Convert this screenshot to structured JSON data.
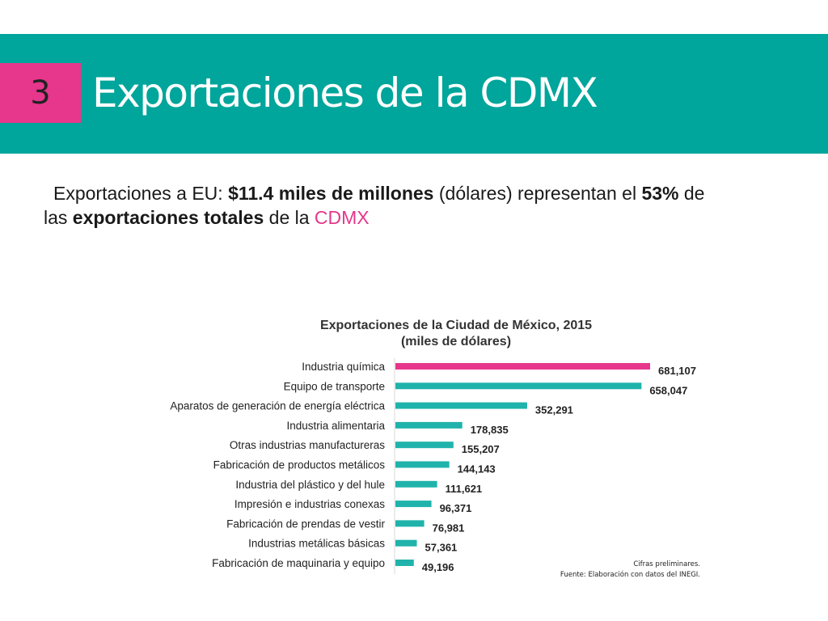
{
  "slide": {
    "number": "3",
    "title": "Exportaciones de la CDMX"
  },
  "intro": {
    "part1": "Exportaciones a EU: ",
    "amount": "$11.4 miles de millones",
    "part2": " (dólares) representan el ",
    "percent": "53%",
    "part3": " de",
    "part4": "las ",
    "bold2": "exportaciones totales",
    "part5": " de la ",
    "accent": "CDMX"
  },
  "notes": {
    "line1": "Cifras preliminares.",
    "line2": "Fuente: Elaboración con datos del INEGI."
  },
  "colors": {
    "header": "#00a59b",
    "accent": "#e6378c",
    "bar_default": "#1fb3ab",
    "bar_highlight": "#e6378c"
  },
  "chart_data": {
    "type": "bar",
    "orientation": "horizontal",
    "title": "Exportaciones de la Ciudad de México, 2015",
    "subtitle": "(miles de dólares)",
    "categories": [
      "Industria química",
      "Equipo de transporte",
      "Aparatos de generación de energía eléctrica",
      "Industria alimentaria",
      "Otras industrias manufactureras",
      "Fabricación de productos metálicos",
      "Industria del plástico y del hule",
      "Impresión e industrias conexas",
      "Fabricación de prendas de vestir",
      "Industrias metálicas básicas",
      "Fabricación de maquinaria y equipo"
    ],
    "values": [
      681107,
      658047,
      352291,
      178835,
      155207,
      144143,
      111621,
      96371,
      76981,
      57361,
      49196
    ],
    "value_labels": [
      "681,107",
      "658,047",
      "352,291",
      "178,835",
      "155,207",
      "144,143",
      "111,621",
      "96,371",
      "76,981",
      "57,361",
      "49,196"
    ],
    "highlight_index": 0,
    "xlim": [
      0,
      681107
    ],
    "grid": false,
    "legend": "none"
  }
}
